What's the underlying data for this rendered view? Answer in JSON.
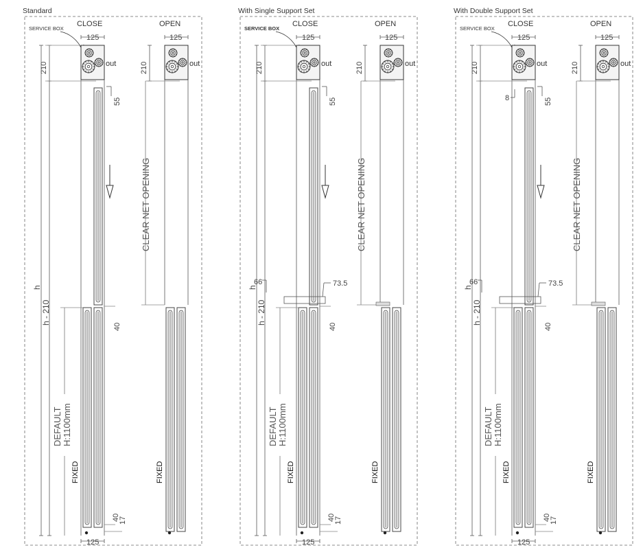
{
  "panels": [
    {
      "title": "Standard",
      "service_box": "SERVICE BOX",
      "close_label": "CLOSE",
      "open_label": "OPEN",
      "dim_top": "125",
      "dim_top_open": "125",
      "dim_210": "210",
      "dim_210_open": "210",
      "out_close": "out",
      "out_open": "out",
      "dim_55": "55",
      "dim_40_mid": "40",
      "dim_h": "h",
      "dim_h210": "h - 210",
      "clear_net": "CLEAR NET OPENING",
      "default": "DEFAULT",
      "height": "H:1100mm",
      "fixed_close": "FIXED",
      "fixed_open": "FIXED",
      "dim_40_bot": "40",
      "dim_17": "17",
      "dim_bottom": "125"
    },
    {
      "title": "With Single Support Set",
      "service_box": "SERVICE BOX",
      "close_label": "CLOSE",
      "open_label": "OPEN",
      "dim_top": "125",
      "dim_top_open": "125",
      "dim_210": "210",
      "dim_210_open": "210",
      "out_close": "out",
      "out_open": "out",
      "dim_55": "55",
      "dim_66": "66",
      "dim_735": "73.5",
      "dim_40_mid": "40",
      "dim_h": "h",
      "dim_h210": "h - 210",
      "clear_net": "CLEAR NET OPENING",
      "default": "DEFAULT",
      "height": "H:1100mm",
      "fixed_close": "FIXED",
      "fixed_open": "FIXED",
      "dim_40_bot": "40",
      "dim_17": "17",
      "dim_bottom": "125"
    },
    {
      "title": "With Double Support Set",
      "service_box": "SERVICE BOX",
      "close_label": "CLOSE",
      "open_label": "OPEN",
      "dim_top": "125",
      "dim_top_open": "125",
      "dim_210": "210",
      "dim_210_open": "210",
      "out_close": "out",
      "out_open": "out",
      "dim_8": "8",
      "dim_55": "55",
      "dim_66": "66",
      "dim_735": "73.5",
      "dim_40_mid": "40",
      "dim_h": "h",
      "dim_h210": "h - 210",
      "clear_net": "CLEAR NET OPENING",
      "default": "DEFAULT",
      "height": "H:1100mm",
      "fixed_close": "FIXED",
      "fixed_open": "FIXED",
      "dim_40_bot": "40",
      "dim_17": "17",
      "dim_bottom": "125"
    }
  ]
}
